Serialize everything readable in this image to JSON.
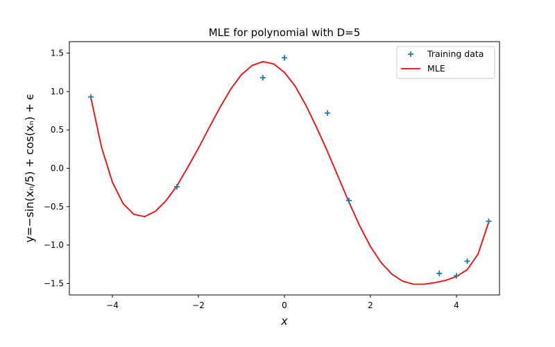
{
  "chart_data": {
    "type": "scatter",
    "title": "MLE for polynomial with D=5",
    "xlabel": "x",
    "ylabel": "y=−sin(xₙ/5) + cos(xₙ) + ϵ",
    "xlim": [
      -5.0,
      5.0
    ],
    "ylim": [
      -1.65,
      1.65
    ],
    "x_ticks": [
      -4,
      -2,
      0,
      2,
      4
    ],
    "x_tick_labels": [
      "−4",
      "−2",
      "0",
      "2",
      "4"
    ],
    "y_ticks": [
      1.5,
      1.0,
      0.5,
      0.0,
      -0.5,
      -1.0,
      -1.5
    ],
    "y_tick_labels": [
      "1.5",
      "1.0",
      "0.5",
      "0.0",
      "−0.5",
      "−1.0",
      "−1.5"
    ],
    "grid": false,
    "legend_position": "top-right",
    "series": [
      {
        "name": "Training data",
        "kind": "scatter",
        "marker": "+",
        "color": "#1f77b4",
        "x": [
          -4.5,
          -2.5,
          -0.5,
          0.0,
          1.0,
          1.5,
          3.6,
          4.0,
          4.25,
          4.75
        ],
        "y": [
          0.93,
          -0.24,
          1.18,
          1.44,
          0.72,
          -0.42,
          -1.37,
          -1.4,
          -1.21,
          -0.69
        ]
      },
      {
        "name": "MLE",
        "kind": "line",
        "color": "#ff0000",
        "x": [
          -4.5,
          -4.25,
          -4.0,
          -3.75,
          -3.5,
          -3.25,
          -3.0,
          -2.75,
          -2.5,
          -2.25,
          -2.0,
          -1.75,
          -1.5,
          -1.25,
          -1.0,
          -0.75,
          -0.5,
          -0.25,
          0.0,
          0.25,
          0.5,
          0.75,
          1.0,
          1.25,
          1.5,
          1.75,
          2.0,
          2.25,
          2.5,
          2.75,
          3.0,
          3.25,
          3.5,
          3.75,
          4.0,
          4.25,
          4.5,
          4.75
        ],
        "y": [
          0.92,
          0.27,
          -0.18,
          -0.46,
          -0.6,
          -0.63,
          -0.56,
          -0.42,
          -0.23,
          0.01,
          0.26,
          0.53,
          0.79,
          1.03,
          1.22,
          1.34,
          1.39,
          1.36,
          1.25,
          1.07,
          0.82,
          0.53,
          0.22,
          -0.11,
          -0.44,
          -0.75,
          -1.02,
          -1.23,
          -1.38,
          -1.47,
          -1.51,
          -1.51,
          -1.49,
          -1.46,
          -1.41,
          -1.32,
          -1.12,
          -0.7
        ]
      }
    ]
  }
}
